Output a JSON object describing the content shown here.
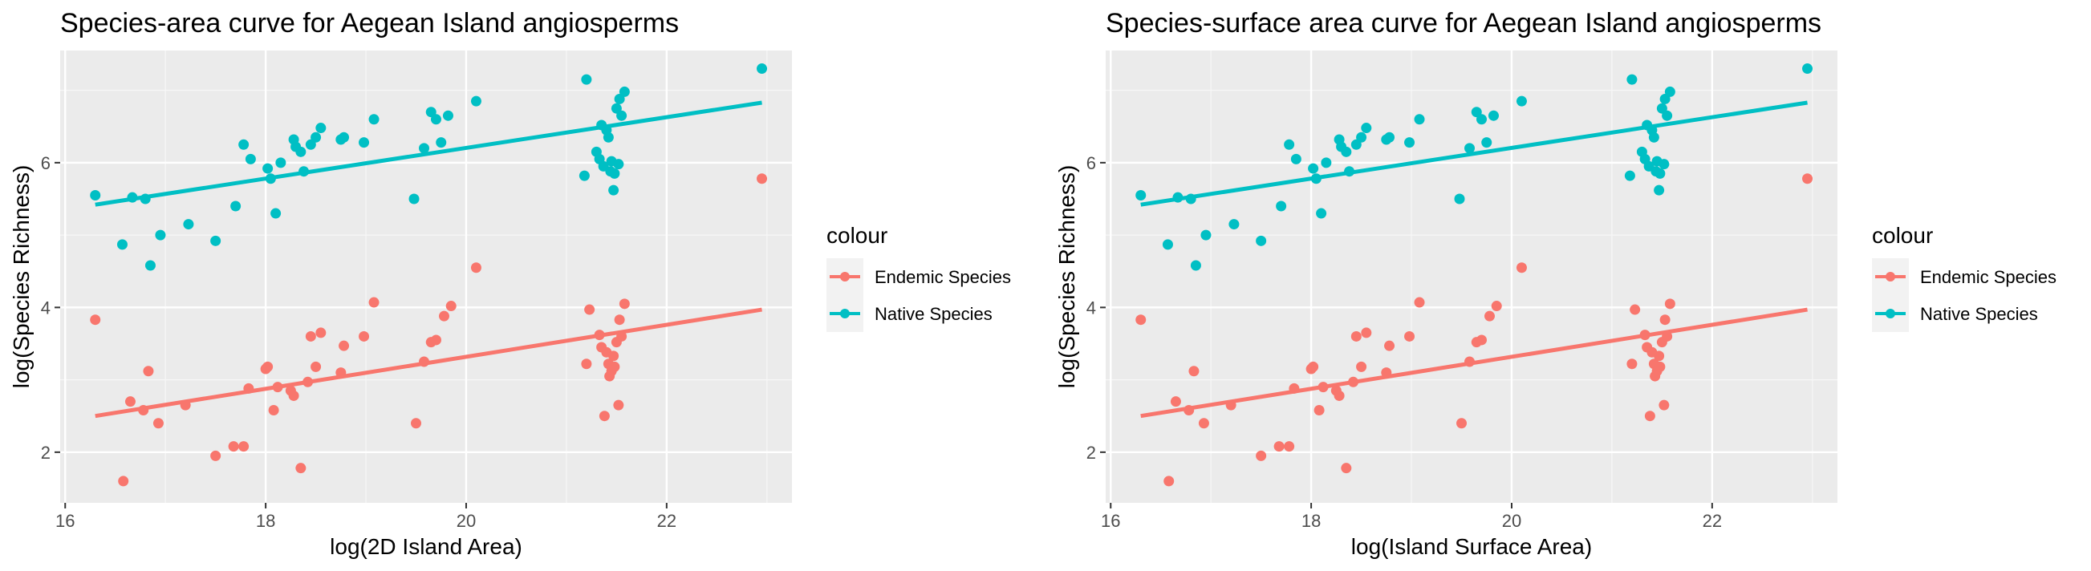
{
  "colors": {
    "endemic": "#F8766D",
    "native": "#00BFC4",
    "panel_bg": "#EBEBEB",
    "grid": "#FFFFFF"
  },
  "chart_data": [
    {
      "type": "scatter",
      "title": "Species-area curve for Aegean Island angiosperms",
      "xlabel": "log(2D Island Area)",
      "ylabel": "log(Species Richness)",
      "xlim": [
        15.95,
        23.25
      ],
      "ylim": [
        1.3,
        7.55
      ],
      "xticks": [
        16,
        18,
        20,
        22
      ],
      "yticks": [
        2,
        4,
        6
      ],
      "grid": true,
      "legend": {
        "title": "colour",
        "placement": "right"
      },
      "series": [
        {
          "name": "Endemic Species",
          "color": "#F8766D",
          "fit": {
            "x": [
              16.3,
              22.95
            ],
            "y": [
              2.5,
              3.97
            ]
          },
          "points": [
            [
              16.3,
              3.83
            ],
            [
              16.58,
              1.6
            ],
            [
              16.65,
              2.7
            ],
            [
              16.78,
              2.58
            ],
            [
              16.83,
              3.12
            ],
            [
              16.93,
              2.4
            ],
            [
              17.2,
              2.65
            ],
            [
              17.5,
              1.95
            ],
            [
              17.68,
              2.08
            ],
            [
              17.78,
              2.08
            ],
            [
              17.83,
              2.88
            ],
            [
              18.0,
              3.15
            ],
            [
              18.02,
              3.18
            ],
            [
              18.08,
              2.58
            ],
            [
              18.12,
              2.9
            ],
            [
              18.25,
              2.85
            ],
            [
              18.28,
              2.78
            ],
            [
              18.35,
              1.78
            ],
            [
              18.42,
              2.97
            ],
            [
              18.45,
              3.6
            ],
            [
              18.5,
              3.18
            ],
            [
              18.55,
              3.65
            ],
            [
              18.75,
              3.1
            ],
            [
              18.78,
              3.47
            ],
            [
              18.98,
              3.6
            ],
            [
              19.08,
              4.07
            ],
            [
              19.5,
              2.4
            ],
            [
              19.58,
              3.25
            ],
            [
              19.65,
              3.52
            ],
            [
              19.7,
              3.55
            ],
            [
              19.78,
              3.88
            ],
            [
              19.85,
              4.02
            ],
            [
              20.1,
              4.55
            ],
            [
              21.2,
              3.22
            ],
            [
              21.23,
              3.97
            ],
            [
              21.33,
              3.62
            ],
            [
              21.35,
              3.45
            ],
            [
              21.38,
              2.5
            ],
            [
              21.4,
              3.38
            ],
            [
              21.42,
              3.22
            ],
            [
              21.43,
              3.05
            ],
            [
              21.45,
              3.12
            ],
            [
              21.47,
              3.33
            ],
            [
              21.48,
              3.18
            ],
            [
              21.5,
              3.52
            ],
            [
              21.52,
              2.65
            ],
            [
              21.53,
              3.83
            ],
            [
              21.55,
              3.6
            ],
            [
              21.58,
              4.05
            ],
            [
              22.95,
              5.78
            ]
          ]
        },
        {
          "name": "Native Species",
          "color": "#00BFC4",
          "fit": {
            "x": [
              16.3,
              22.95
            ],
            "y": [
              5.42,
              6.83
            ]
          },
          "points": [
            [
              16.3,
              5.55
            ],
            [
              16.57,
              4.87
            ],
            [
              16.67,
              5.52
            ],
            [
              16.8,
              5.5
            ],
            [
              16.85,
              4.58
            ],
            [
              16.95,
              5.0
            ],
            [
              17.23,
              5.15
            ],
            [
              17.5,
              4.92
            ],
            [
              17.7,
              5.4
            ],
            [
              17.78,
              6.25
            ],
            [
              17.85,
              6.05
            ],
            [
              18.02,
              5.92
            ],
            [
              18.05,
              5.78
            ],
            [
              18.1,
              5.3
            ],
            [
              18.15,
              6.0
            ],
            [
              18.28,
              6.32
            ],
            [
              18.3,
              6.22
            ],
            [
              18.35,
              6.15
            ],
            [
              18.38,
              5.88
            ],
            [
              18.45,
              6.25
            ],
            [
              18.5,
              6.35
            ],
            [
              18.55,
              6.48
            ],
            [
              18.75,
              6.32
            ],
            [
              18.78,
              6.35
            ],
            [
              18.98,
              6.28
            ],
            [
              19.08,
              6.6
            ],
            [
              19.48,
              5.5
            ],
            [
              19.58,
              6.2
            ],
            [
              19.65,
              6.7
            ],
            [
              19.7,
              6.6
            ],
            [
              19.75,
              6.28
            ],
            [
              19.82,
              6.65
            ],
            [
              20.1,
              6.85
            ],
            [
              21.18,
              5.82
            ],
            [
              21.2,
              7.15
            ],
            [
              21.3,
              6.15
            ],
            [
              21.33,
              6.05
            ],
            [
              21.35,
              6.52
            ],
            [
              21.37,
              5.95
            ],
            [
              21.4,
              6.45
            ],
            [
              21.42,
              6.35
            ],
            [
              21.44,
              5.88
            ],
            [
              21.45,
              6.02
            ],
            [
              21.47,
              5.62
            ],
            [
              21.48,
              5.85
            ],
            [
              21.5,
              6.75
            ],
            [
              21.52,
              5.98
            ],
            [
              21.53,
              6.88
            ],
            [
              21.55,
              6.65
            ],
            [
              21.58,
              6.98
            ],
            [
              22.95,
              7.3
            ]
          ]
        }
      ]
    },
    {
      "type": "scatter",
      "title": "Species-surface area curve for Aegean Island angiosperms",
      "xlabel": "log(Island Surface Area)",
      "ylabel": "log(Species Richness)",
      "xlim": [
        15.95,
        23.25
      ],
      "ylim": [
        1.3,
        7.55
      ],
      "xticks": [
        16,
        18,
        20,
        22
      ],
      "yticks": [
        2,
        4,
        6
      ],
      "grid": true,
      "legend": {
        "title": "colour",
        "placement": "right"
      },
      "series": [
        {
          "name": "Endemic Species",
          "color": "#F8766D",
          "fit": {
            "x": [
              16.3,
              22.95
            ],
            "y": [
              2.5,
              3.97
            ]
          },
          "points": [
            [
              16.3,
              3.83
            ],
            [
              16.58,
              1.6
            ],
            [
              16.65,
              2.7
            ],
            [
              16.78,
              2.58
            ],
            [
              16.83,
              3.12
            ],
            [
              16.93,
              2.4
            ],
            [
              17.2,
              2.65
            ],
            [
              17.5,
              1.95
            ],
            [
              17.68,
              2.08
            ],
            [
              17.78,
              2.08
            ],
            [
              17.83,
              2.88
            ],
            [
              18.0,
              3.15
            ],
            [
              18.02,
              3.18
            ],
            [
              18.08,
              2.58
            ],
            [
              18.12,
              2.9
            ],
            [
              18.25,
              2.85
            ],
            [
              18.28,
              2.78
            ],
            [
              18.35,
              1.78
            ],
            [
              18.42,
              2.97
            ],
            [
              18.45,
              3.6
            ],
            [
              18.5,
              3.18
            ],
            [
              18.55,
              3.65
            ],
            [
              18.75,
              3.1
            ],
            [
              18.78,
              3.47
            ],
            [
              18.98,
              3.6
            ],
            [
              19.08,
              4.07
            ],
            [
              19.5,
              2.4
            ],
            [
              19.58,
              3.25
            ],
            [
              19.65,
              3.52
            ],
            [
              19.7,
              3.55
            ],
            [
              19.78,
              3.88
            ],
            [
              19.85,
              4.02
            ],
            [
              20.1,
              4.55
            ],
            [
              21.2,
              3.22
            ],
            [
              21.23,
              3.97
            ],
            [
              21.33,
              3.62
            ],
            [
              21.35,
              3.45
            ],
            [
              21.38,
              2.5
            ],
            [
              21.4,
              3.38
            ],
            [
              21.42,
              3.22
            ],
            [
              21.43,
              3.05
            ],
            [
              21.45,
              3.12
            ],
            [
              21.47,
              3.33
            ],
            [
              21.48,
              3.18
            ],
            [
              21.5,
              3.52
            ],
            [
              21.52,
              2.65
            ],
            [
              21.53,
              3.83
            ],
            [
              21.55,
              3.6
            ],
            [
              21.58,
              4.05
            ],
            [
              22.95,
              5.78
            ]
          ]
        },
        {
          "name": "Native Species",
          "color": "#00BFC4",
          "fit": {
            "x": [
              16.3,
              22.95
            ],
            "y": [
              5.42,
              6.83
            ]
          },
          "points": [
            [
              16.3,
              5.55
            ],
            [
              16.57,
              4.87
            ],
            [
              16.67,
              5.52
            ],
            [
              16.8,
              5.5
            ],
            [
              16.85,
              4.58
            ],
            [
              16.95,
              5.0
            ],
            [
              17.23,
              5.15
            ],
            [
              17.5,
              4.92
            ],
            [
              17.7,
              5.4
            ],
            [
              17.78,
              6.25
            ],
            [
              17.85,
              6.05
            ],
            [
              18.02,
              5.92
            ],
            [
              18.05,
              5.78
            ],
            [
              18.1,
              5.3
            ],
            [
              18.15,
              6.0
            ],
            [
              18.28,
              6.32
            ],
            [
              18.3,
              6.22
            ],
            [
              18.35,
              6.15
            ],
            [
              18.38,
              5.88
            ],
            [
              18.45,
              6.25
            ],
            [
              18.5,
              6.35
            ],
            [
              18.55,
              6.48
            ],
            [
              18.75,
              6.32
            ],
            [
              18.78,
              6.35
            ],
            [
              18.98,
              6.28
            ],
            [
              19.08,
              6.6
            ],
            [
              19.48,
              5.5
            ],
            [
              19.58,
              6.2
            ],
            [
              19.65,
              6.7
            ],
            [
              19.7,
              6.6
            ],
            [
              19.75,
              6.28
            ],
            [
              19.82,
              6.65
            ],
            [
              20.1,
              6.85
            ],
            [
              21.18,
              5.82
            ],
            [
              21.2,
              7.15
            ],
            [
              21.3,
              6.15
            ],
            [
              21.33,
              6.05
            ],
            [
              21.35,
              6.52
            ],
            [
              21.37,
              5.95
            ],
            [
              21.4,
              6.45
            ],
            [
              21.42,
              6.35
            ],
            [
              21.44,
              5.88
            ],
            [
              21.45,
              6.02
            ],
            [
              21.47,
              5.62
            ],
            [
              21.48,
              5.85
            ],
            [
              21.5,
              6.75
            ],
            [
              21.52,
              5.98
            ],
            [
              21.53,
              6.88
            ],
            [
              21.55,
              6.65
            ],
            [
              21.58,
              6.98
            ],
            [
              22.95,
              7.3
            ]
          ]
        }
      ]
    }
  ]
}
